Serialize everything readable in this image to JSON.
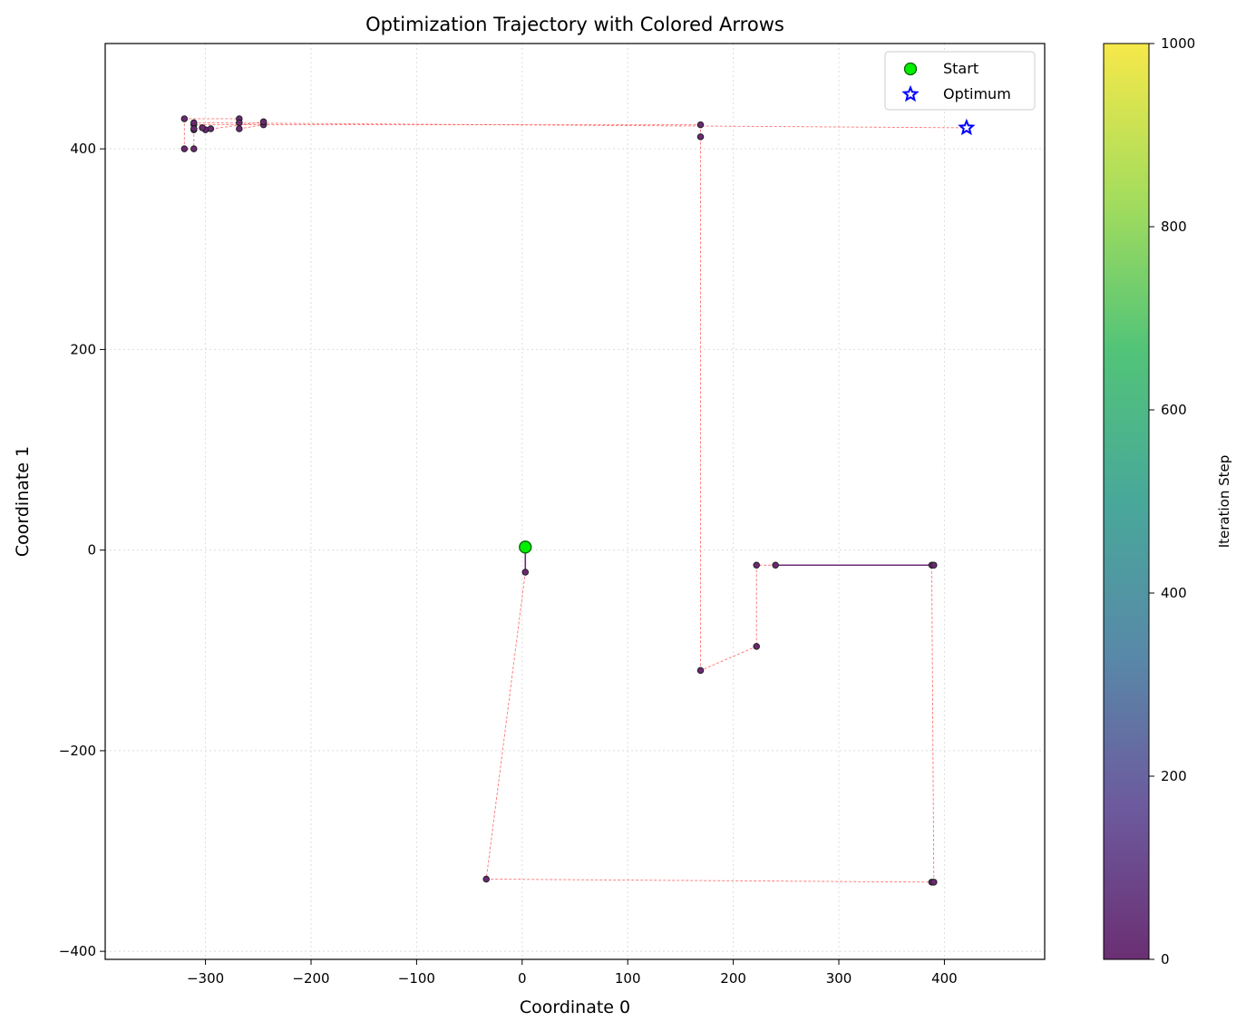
{
  "chart_data": {
    "type": "scatter",
    "title": "Optimization Trajectory with Colored Arrows",
    "xlabel": "Coordinate 0",
    "ylabel": "Coordinate 1",
    "xlim": [
      -395,
      495
    ],
    "ylim": [
      -408,
      505
    ],
    "xticks": [
      -300,
      -200,
      -100,
      0,
      100,
      200,
      300,
      400
    ],
    "yticks": [
      -400,
      -200,
      0,
      200,
      400
    ],
    "xtick_labels": [
      "−300",
      "−200",
      "−100",
      "0",
      "100",
      "200",
      "300",
      "400"
    ],
    "ytick_labels": [
      "−400",
      "−200",
      "0",
      "200",
      "400"
    ],
    "grid": true,
    "legend_position": "top-right",
    "legend": [
      {
        "label": "Start",
        "marker": "circle",
        "color": "#00ee00"
      },
      {
        "label": "Optimum",
        "marker": "star",
        "color": "#0000ff"
      }
    ],
    "start": [
      3,
      3
    ],
    "optimum": [
      421,
      421
    ],
    "trajectory": [
      [
        3,
        3
      ],
      [
        3,
        -22
      ],
      [
        -34,
        -328
      ],
      [
        388,
        -331
      ],
      [
        390,
        -331
      ],
      [
        388,
        -15
      ],
      [
        390,
        -15
      ],
      [
        240,
        -15
      ],
      [
        222,
        -15
      ],
      [
        222,
        -96
      ],
      [
        169,
        -120
      ],
      [
        169,
        412
      ],
      [
        169,
        424
      ],
      [
        -311,
        424
      ],
      [
        -311,
        419
      ],
      [
        -311,
        400
      ],
      [
        -320,
        400
      ],
      [
        -320,
        430
      ],
      [
        -268,
        430
      ],
      [
        -268,
        426
      ],
      [
        -268,
        420
      ],
      [
        -245,
        424
      ],
      [
        -245,
        427
      ],
      [
        -300,
        419
      ],
      [
        -295,
        420
      ],
      [
        -303,
        421
      ],
      [
        -311,
        420
      ],
      [
        -311,
        426
      ],
      [
        421,
        421
      ]
    ],
    "path_color": "#ff5c5c",
    "point_color": "#6a2a72",
    "colorbar": {
      "label": "Iteration Step",
      "min": 0,
      "max": 1000,
      "ticks": [
        0,
        200,
        400,
        600,
        800,
        1000
      ],
      "colormap": [
        "#6b2f73",
        "#6d5a9e",
        "#5889a8",
        "#48a89a",
        "#52c478",
        "#a6dd5c",
        "#f6e849"
      ]
    }
  }
}
